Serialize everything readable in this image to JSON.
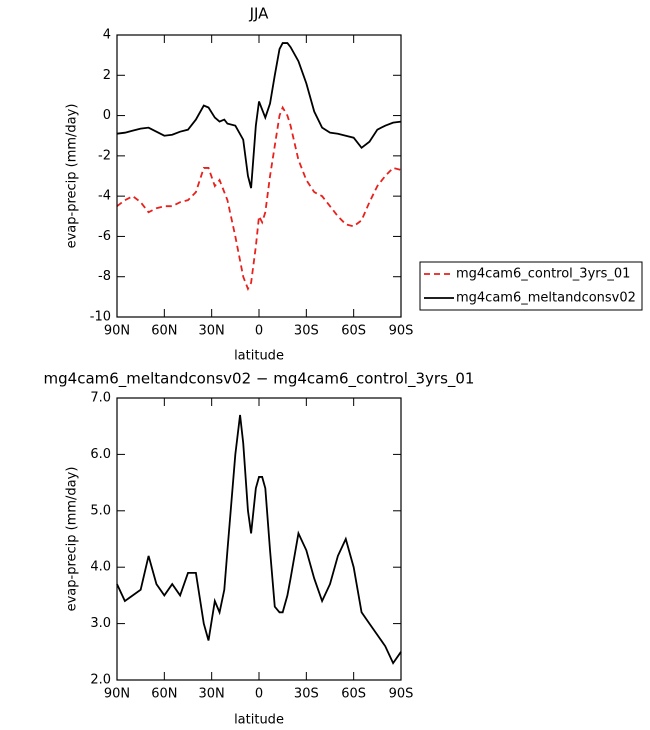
{
  "chart_data": [
    {
      "type": "line",
      "title": "JJA",
      "x_label": "latitude",
      "y_label": "evap-precip (mm/day)",
      "x": [
        90,
        85,
        80,
        75,
        70,
        65,
        60,
        55,
        50,
        45,
        40,
        35,
        32,
        28,
        25,
        22,
        20,
        15,
        10,
        7,
        5,
        2,
        0,
        -2,
        -4,
        -7,
        -10,
        -13,
        -15,
        -18,
        -20,
        -25,
        -30,
        -35,
        -40,
        -45,
        -50,
        -55,
        -60,
        -65,
        -70,
        -75,
        -80,
        -85,
        -90
      ],
      "xlim": [
        90,
        -90
      ],
      "xticks": [
        {
          "value": 90,
          "label": "90N"
        },
        {
          "value": 60,
          "label": "60N"
        },
        {
          "value": 30,
          "label": "30N"
        },
        0,
        {
          "value": -30,
          "label": "30S"
        },
        {
          "value": -60,
          "label": "60S"
        },
        {
          "value": -90,
          "label": "90S"
        }
      ],
      "ylim": [
        -10,
        4
      ],
      "yticks": [
        -10,
        -8,
        -6,
        -4,
        -2,
        0,
        2,
        4
      ],
      "legend": "outside-right",
      "series": [
        {
          "name": "mg4cam6_control_3yrs_01",
          "color": "#e8211d",
          "dash": "dashed",
          "values": [
            -4.5,
            -4.2,
            -4.0,
            -4.3,
            -4.8,
            -4.6,
            -4.5,
            -4.5,
            -4.3,
            -4.2,
            -3.8,
            -2.6,
            -2.6,
            -3.5,
            -3.2,
            -3.8,
            -4.2,
            -6.0,
            -8.0,
            -8.6,
            -8.3,
            -6.5,
            -5.0,
            -5.3,
            -4.8,
            -3.0,
            -1.5,
            0.0,
            0.4,
            0.0,
            -0.5,
            -2.2,
            -3.2,
            -3.8,
            -4.0,
            -4.5,
            -5.0,
            -5.4,
            -5.5,
            -5.2,
            -4.3,
            -3.5,
            -3.0,
            -2.6,
            -2.7
          ]
        },
        {
          "name": "mg4cam6_meltandconsv02",
          "color": "#000000",
          "dash": "solid",
          "values": [
            -0.9,
            -0.85,
            -0.75,
            -0.65,
            -0.6,
            -0.8,
            -1.0,
            -0.95,
            -0.8,
            -0.7,
            -0.2,
            0.5,
            0.4,
            -0.1,
            -0.3,
            -0.2,
            -0.4,
            -0.5,
            -1.2,
            -3.0,
            -3.6,
            -0.5,
            0.7,
            0.3,
            -0.1,
            0.6,
            2.0,
            3.3,
            3.6,
            3.6,
            3.4,
            2.7,
            1.6,
            0.2,
            -0.6,
            -0.85,
            -0.9,
            -1.0,
            -1.1,
            -1.6,
            -1.3,
            -0.7,
            -0.5,
            -0.35,
            -0.3
          ]
        }
      ]
    },
    {
      "type": "line",
      "title": "mg4cam6_meltandconsv02 − mg4cam6_control_3yrs_01",
      "x_label": "latitude",
      "y_label": "evap-precip (mm/day)",
      "x": [
        90,
        85,
        80,
        75,
        70,
        65,
        60,
        55,
        50,
        45,
        40,
        35,
        32,
        28,
        25,
        22,
        20,
        15,
        12,
        10,
        7,
        5,
        2,
        0,
        -2,
        -4,
        -7,
        -10,
        -13,
        -15,
        -18,
        -20,
        -25,
        -30,
        -35,
        -40,
        -45,
        -50,
        -55,
        -60,
        -65,
        -70,
        -75,
        -80,
        -85,
        -90
      ],
      "xlim": [
        90,
        -90
      ],
      "xticks": [
        {
          "value": 90,
          "label": "90N"
        },
        {
          "value": 60,
          "label": "60N"
        },
        {
          "value": 30,
          "label": "30N"
        },
        0,
        {
          "value": -30,
          "label": "30S"
        },
        {
          "value": -60,
          "label": "60S"
        },
        {
          "value": -90,
          "label": "90S"
        }
      ],
      "ylim": [
        2,
        7
      ],
      "yticks": [
        {
          "value": 2,
          "label": "2.0"
        },
        {
          "value": 3,
          "label": "3.0"
        },
        {
          "value": 4,
          "label": "4.0"
        },
        {
          "value": 5,
          "label": "5.0"
        },
        {
          "value": 6,
          "label": "6.0"
        },
        {
          "value": 7,
          "label": "7.0"
        }
      ],
      "series": [
        {
          "color": "#000000",
          "dash": "solid",
          "values": [
            3.7,
            3.4,
            3.5,
            3.6,
            4.2,
            3.7,
            3.5,
            3.7,
            3.5,
            3.9,
            3.9,
            3.0,
            2.7,
            3.4,
            3.2,
            3.6,
            4.3,
            6.0,
            6.7,
            6.2,
            5.0,
            4.6,
            5.4,
            5.6,
            5.6,
            5.4,
            4.3,
            3.3,
            3.2,
            3.2,
            3.5,
            3.8,
            4.6,
            4.3,
            3.8,
            3.4,
            3.7,
            4.2,
            4.5,
            4.0,
            3.2,
            3.0,
            2.8,
            2.6,
            2.3,
            2.5
          ]
        }
      ]
    }
  ]
}
